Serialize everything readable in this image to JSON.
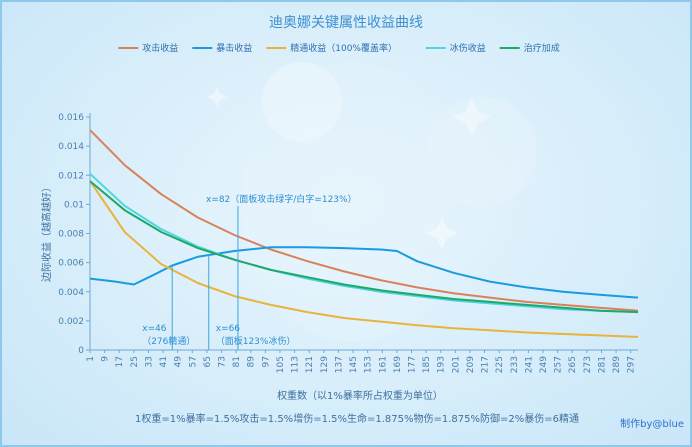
{
  "chart_data": {
    "type": "line",
    "title": "迪奥娜关键属性收益曲线",
    "xlabel": "权重数（以1%暴率所占权重为单位）",
    "ylabel": "边际收益（越高越好）",
    "ylim": [
      0,
      0.016
    ],
    "xlim": [
      1,
      301
    ],
    "yticks": [
      "0",
      "0.002",
      "0.004",
      "0.006",
      "0.008",
      "0.01",
      "0.012",
      "0.014",
      "0.016"
    ],
    "xticks": [
      1,
      9,
      17,
      25,
      33,
      41,
      49,
      57,
      65,
      73,
      81,
      89,
      97,
      105,
      113,
      121,
      129,
      137,
      145,
      153,
      161,
      169,
      177,
      185,
      193,
      201,
      209,
      217,
      225,
      233,
      241,
      249,
      257,
      265,
      273,
      281,
      289,
      297
    ],
    "legend_position": "top",
    "grid": false,
    "series": [
      {
        "name": "攻击收益",
        "color": "#d9825a",
        "x": [
          1,
          20,
          40,
          60,
          80,
          100,
          120,
          140,
          160,
          180,
          200,
          220,
          240,
          260,
          280,
          301
        ],
        "y": [
          0.0151,
          0.0127,
          0.0107,
          0.0091,
          0.0079,
          0.0069,
          0.0061,
          0.0054,
          0.0048,
          0.0043,
          0.0039,
          0.0036,
          0.0033,
          0.0031,
          0.0029,
          0.0027
        ]
      },
      {
        "name": "暴击收益",
        "color": "#1a9be0",
        "x": [
          1,
          15,
          25,
          35,
          46,
          60,
          80,
          100,
          120,
          140,
          160,
          169,
          180,
          200,
          220,
          240,
          260,
          280,
          301
        ],
        "y": [
          0.0049,
          0.0047,
          0.0045,
          0.0051,
          0.0058,
          0.0064,
          0.0068,
          0.00705,
          0.00705,
          0.007,
          0.0069,
          0.0068,
          0.0061,
          0.0053,
          0.0047,
          0.0043,
          0.004,
          0.0038,
          0.0036
        ]
      },
      {
        "name": "精通收益（100%覆盖率）",
        "color": "#e8b43c",
        "x": [
          1,
          20,
          40,
          60,
          80,
          100,
          120,
          140,
          160,
          180,
          200,
          220,
          240,
          260,
          280,
          301
        ],
        "y": [
          0.0116,
          0.0081,
          0.0059,
          0.0046,
          0.0037,
          0.0031,
          0.0026,
          0.0022,
          0.00195,
          0.0017,
          0.0015,
          0.00135,
          0.0012,
          0.0011,
          0.001,
          0.0009
        ]
      },
      {
        "name": "冰伤收益",
        "color": "#4fd6de",
        "x": [
          1,
          20,
          40,
          60,
          80,
          100,
          120,
          140,
          160,
          180,
          200,
          220,
          240,
          260,
          280,
          301
        ],
        "y": [
          0.0121,
          0.0099,
          0.0083,
          0.0071,
          0.0062,
          0.0055,
          0.0049,
          0.0044,
          0.004,
          0.0037,
          0.0034,
          0.0032,
          0.003,
          0.0028,
          0.0027,
          0.0026
        ]
      },
      {
        "name": "治疗加成",
        "color": "#1fa86a",
        "x": [
          1,
          20,
          40,
          60,
          80,
          100,
          120,
          140,
          160,
          180,
          200,
          220,
          240,
          260,
          280,
          301
        ],
        "y": [
          0.0116,
          0.0096,
          0.0081,
          0.007,
          0.0062,
          0.0055,
          0.005,
          0.0045,
          0.0041,
          0.0038,
          0.0035,
          0.0033,
          0.0031,
          0.0029,
          0.0027,
          0.0026
        ]
      }
    ],
    "annotations": [
      {
        "x": 82,
        "y": 0.0069,
        "lines": [
          "x=82（面板攻击绿字/白字=123%）"
        ]
      },
      {
        "x": 46,
        "y": 0.0058,
        "lines": [
          "x=46",
          "（276精通）"
        ]
      },
      {
        "x": 66,
        "y": 0.0065,
        "lines": [
          "x=66",
          "（面板123%冰伤）"
        ]
      }
    ]
  },
  "footer": {
    "formula": "1权重=1%暴率=1.5%攻击=1.5%增伤=1.5%生命=1.875%物伤=1.875%防御=2%暴伤=6精通",
    "credit": "制作by@blue"
  }
}
